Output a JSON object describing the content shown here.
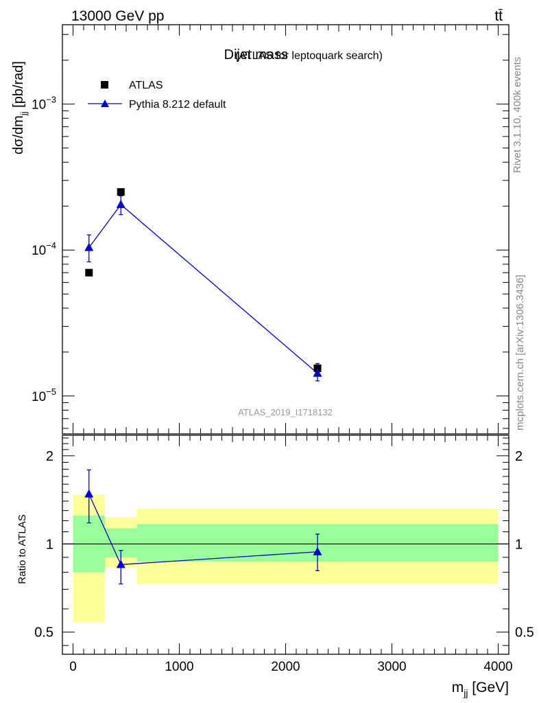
{
  "header": {
    "energy_label": "13000 GeV pp",
    "process_label": "tt̄"
  },
  "side_labels": {
    "rivet": "Rivet 3.1.10,  400k events",
    "source": "mcplots.cern.ch [arXiv:1306.3436]"
  },
  "colors": {
    "mc": "#0000cc",
    "data": "#000000",
    "band_inner": "#99ff99",
    "band_outer": "#ffff99"
  },
  "chart_data": [
    {
      "type": "scatter",
      "title_main": "Dijet mass",
      "title_sub": "(ATLAS for leptoquark search)",
      "ylabel": "dσ/dm_jj [pb/rad]",
      "yscale": "log",
      "xlim": [
        -100,
        4100
      ],
      "ylim": [
        5.5e-06,
        0.0035
      ],
      "y_ticks": [
        {
          "value": 0.001,
          "base": "10",
          "exp": "−3"
        },
        {
          "value": 0.0001,
          "base": "10",
          "exp": "−4"
        },
        {
          "value": 1e-05,
          "base": "10",
          "exp": "−5"
        }
      ],
      "watermark": "ATLAS_2019_I1718132",
      "legend": [
        {
          "label": "ATLAS",
          "marker": "square",
          "color": "#000000"
        },
        {
          "label": "Pythia 8.212 default",
          "marker": "triangle",
          "color": "#0000cc"
        }
      ],
      "series": [
        {
          "name": "ATLAS",
          "x": [
            150,
            450,
            2300
          ],
          "y": [
            7e-05,
            0.00025,
            1.55e-05
          ]
        },
        {
          "name": "Pythia 8.212 default",
          "x": [
            150,
            450,
            2300
          ],
          "y": [
            0.000104,
            0.000205,
            1.43e-05
          ],
          "yerr_low": [
            8.3e-05,
            0.000175,
            1.27e-05
          ],
          "yerr_high": [
            0.000127,
            0.000235,
            1.67e-05
          ]
        }
      ]
    },
    {
      "type": "line",
      "ylabel": "Ratio to ATLAS",
      "yscale": "log",
      "xlim": [
        -100,
        4100
      ],
      "ylim": [
        0.42,
        2.35
      ],
      "xlabel": "m_jj [GeV]",
      "x_ticks": [
        0,
        1000,
        2000,
        3000,
        4000
      ],
      "x_tick_labels": [
        "0",
        "1000",
        "2000",
        "3000",
        "4000"
      ],
      "y_ticks": [
        0.5,
        1,
        2
      ],
      "y_tick_labels": [
        "0.5",
        "1",
        "2"
      ],
      "bands": [
        {
          "x0": 0,
          "x1": 300,
          "outer": [
            0.54,
            1.47
          ],
          "inner": [
            0.8,
            1.25
          ]
        },
        {
          "x0": 300,
          "x1": 600,
          "outer": [
            0.83,
            1.23
          ],
          "inner": [
            0.9,
            1.13
          ]
        },
        {
          "x0": 600,
          "x1": 4000,
          "outer": [
            0.73,
            1.32
          ],
          "inner": [
            0.87,
            1.17
          ]
        }
      ],
      "reference": 1,
      "series": [
        {
          "name": "Pythia 8.212 default",
          "x": [
            150,
            450,
            2300
          ],
          "y": [
            1.48,
            0.85,
            0.94
          ],
          "yerr_low": [
            1.18,
            0.73,
            0.81
          ],
          "yerr_high": [
            1.79,
            0.95,
            1.08
          ]
        }
      ]
    }
  ]
}
